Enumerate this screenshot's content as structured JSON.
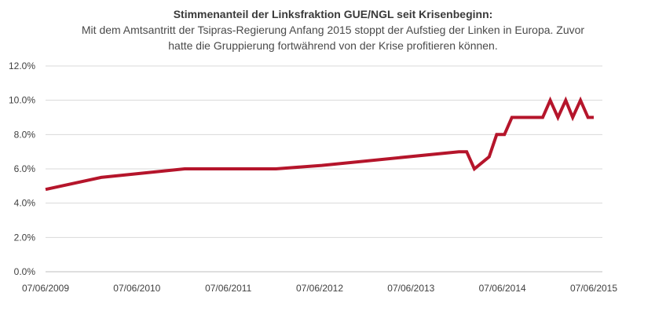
{
  "chart_data": {
    "type": "line",
    "title": "Stimmenanteil der Linksfraktion GUE/NGL seit Krisenbeginn:",
    "subtitle": "Mit dem Amtsantritt der Tsipras-Regierung Anfang 2015 stoppt der Aufstieg der Linken in Europa. Zuvor hatte die Gruppierung  fortwährend von der Krise profitieren können.",
    "xlabel": "",
    "ylabel": "",
    "x_tick_labels": [
      "07/06/2009",
      "07/06/2010",
      "07/06/2011",
      "07/06/2012",
      "07/06/2013",
      "07/06/2014",
      "07/06/2015"
    ],
    "y_tick_labels": [
      "0.0%",
      "2.0%",
      "4.0%",
      "6.0%",
      "8.0%",
      "10.0%",
      "12.0%"
    ],
    "ylim": [
      0,
      12
    ],
    "xlim": [
      "2009-06-07",
      "2015-06-07"
    ],
    "grid": "horizontal",
    "line_color": "#b5152b",
    "series": [
      {
        "x": [
          "2009-06-07",
          "2010-01-15",
          "2010-12-15",
          "2011-12-15",
          "2012-06-15",
          "2013-12-15",
          "2014-01-15",
          "2014-02-15",
          "2014-04-15",
          "2014-05-15",
          "2014-06-15",
          "2014-07-15",
          "2014-09-15",
          "2014-11-15",
          "2014-12-15",
          "2015-01-15",
          "2015-02-15",
          "2015-03-15",
          "2015-04-15",
          "2015-05-15",
          "2015-06-07"
        ],
        "y": [
          4.8,
          5.5,
          6.0,
          6.0,
          6.2,
          7.0,
          7.0,
          6.0,
          6.7,
          8.0,
          8.0,
          9.0,
          9.0,
          9.0,
          10.0,
          9.0,
          10.0,
          9.0,
          10.0,
          9.0,
          9.0
        ]
      }
    ]
  }
}
